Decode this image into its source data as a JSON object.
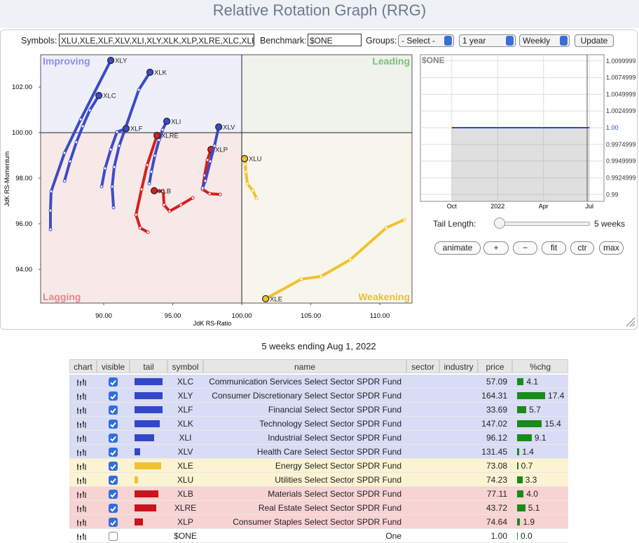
{
  "header": {
    "title": "Relative Rotation Graph (RRG)"
  },
  "controls": {
    "symbols_label": "Symbols:",
    "symbols": "XLU,XLE,XLF,XLV,XLI,XLY,XLK,XLP,XLRE,XLC,XLB",
    "benchmark_label": "Benchmark:",
    "benchmark": "$ONE",
    "groups_label": "Groups:",
    "groups": "- Select -",
    "period": "1 year",
    "frequency": "Weekly",
    "update": "Update",
    "tail_label": "Tail Length:",
    "tail_value": "5 weeks",
    "buttons": [
      "animate",
      "+",
      "−",
      "fit",
      "ctr",
      "max"
    ]
  },
  "chart_data": [
    {
      "type": "scatter",
      "x_label": "JdK RS-Ratio",
      "y_label": "JdK RS-Momentum",
      "center": [
        100,
        100
      ],
      "quadrants": [
        {
          "name": "Improving",
          "corner": "top-left",
          "color": "#8a93e0",
          "fill": "#eeeff9"
        },
        {
          "name": "Leading",
          "corner": "top-right",
          "color": "#7cbd7c",
          "fill": "#eef3ec"
        },
        {
          "name": "Lagging",
          "corner": "bottom-left",
          "color": "#e58888",
          "fill": "#f8e9e9"
        },
        {
          "name": "Weakening",
          "corner": "bottom-right",
          "color": "#e6bf3c",
          "fill": "#f8f6ec"
        }
      ],
      "xlim": [
        85.43,
        112.33
      ],
      "ylim": [
        92.52,
        103.42
      ],
      "xticks": [
        {
          "value": 90,
          "label": "90.00"
        },
        {
          "value": 95,
          "label": "95.00"
        },
        {
          "value": 100,
          "label": "100.00"
        },
        {
          "value": 105,
          "label": "105.00"
        },
        {
          "value": 110,
          "label": "110.00"
        }
      ],
      "yticks": [
        {
          "value": 94,
          "label": "94.00"
        },
        {
          "value": 96,
          "label": "96.00"
        },
        {
          "value": 98,
          "label": "98.00"
        },
        {
          "value": 100,
          "label": "100.00"
        },
        {
          "value": 102,
          "label": "102.00"
        }
      ],
      "series": [
        {
          "name": "XLY",
          "color": "#3a4cc8",
          "x": [
            86.14,
            86.14,
            86.19,
            87.16,
            88.33,
            90.51
          ],
          "values": [
            95.75,
            96.58,
            97.42,
            99.11,
            100.58,
            103.17
          ]
        },
        {
          "name": "XLC",
          "color": "#3a4cc8",
          "x": [
            87.16,
            87.56,
            88.02,
            88.48,
            88.99,
            89.65
          ],
          "values": [
            97.88,
            98.74,
            99.58,
            100.28,
            100.98,
            101.63
          ]
        },
        {
          "name": "XLK",
          "color": "#3a4cc8",
          "x": [
            90.71,
            90.61,
            90.76,
            91.12,
            92.54,
            93.35
          ],
          "values": [
            96.71,
            97.63,
            98.49,
            99.42,
            101.88,
            102.65
          ]
        },
        {
          "name": "XLF",
          "color": "#3a4cc8",
          "x": [
            89.85,
            90.1,
            90.51,
            90.96,
            91.62
          ],
          "values": [
            97.63,
            98.43,
            99.26,
            100.03,
            100.18
          ]
        },
        {
          "name": "XLI",
          "color": "#3a4cc8",
          "x": [
            93.3,
            93.45,
            93.7,
            94.01,
            94.26,
            94.57
          ],
          "values": [
            97.76,
            98.28,
            98.99,
            99.67,
            100.13,
            100.5
          ]
        },
        {
          "name": "XLRE",
          "color": "#d42020",
          "x": [
            93.2,
            92.64,
            92.34,
            92.74,
            93.15,
            93.86
          ],
          "values": [
            95.63,
            95.82,
            96.4,
            97.51,
            98.58,
            99.88
          ]
        },
        {
          "name": "XLB",
          "color": "#d42020",
          "x": [
            96.45,
            95.59,
            94.77,
            94.37,
            94.31,
            93.66
          ],
          "values": [
            97.14,
            96.83,
            96.55,
            96.83,
            97.42,
            97.45
          ]
        },
        {
          "name": "XLP",
          "color": "#d42020",
          "x": [
            98.43,
            97.67,
            97.16,
            97.31,
            97.51,
            97.77
          ],
          "values": [
            97.29,
            97.32,
            97.51,
            98.12,
            98.8,
            99.26
          ]
        },
        {
          "name": "XLV",
          "color": "#3a4cc8",
          "x": [
            97.16,
            97.36,
            97.72,
            98.02,
            98.33
          ],
          "values": [
            97.57,
            97.88,
            98.74,
            99.42,
            100.25
          ]
        },
        {
          "name": "XLU",
          "color": "#f0c230",
          "x": [
            101.07,
            100.81,
            100.41,
            100.3,
            100.25,
            100.2
          ],
          "values": [
            97.11,
            97.45,
            97.75,
            98.28,
            98.6,
            98.86
          ]
        },
        {
          "name": "XLE",
          "color": "#f0c230",
          "x": [
            111.78,
            110.46,
            107.87,
            105.74,
            104.32,
            101.73
          ],
          "values": [
            96.18,
            95.82,
            94.43,
            93.69,
            93.57,
            92.71
          ]
        }
      ]
    },
    {
      "type": "line",
      "title": "$ONE",
      "categories": [
        "Oct",
        "2022",
        "Apr",
        "Jul"
      ],
      "values": [
        1,
        1,
        1,
        1
      ],
      "color": "#3347c8",
      "grid": true,
      "ylim": [
        0.98898,
        1.01092
      ],
      "yticks": [
        {
          "value": 1.01,
          "label": "1.0099999"
        },
        {
          "value": 1.0075,
          "label": "1.0074999"
        },
        {
          "value": 1.005,
          "label": "1.0049999"
        },
        {
          "value": 1.0025,
          "label": "1.0024999"
        },
        {
          "value": 1,
          "label": "1.00"
        },
        {
          "value": 0.9975,
          "label": "0.9974999"
        },
        {
          "value": 0.995,
          "label": "0.9949999"
        },
        {
          "value": 0.9925,
          "label": "0.9924999"
        },
        {
          "value": 0.99,
          "label": "0.99"
        }
      ]
    }
  ],
  "table": {
    "caption": "5 weeks ending Aug 1, 2022",
    "columns": [
      "chart",
      "visible",
      "tail",
      "symbol",
      "name",
      "sector",
      "industry",
      "price",
      "%chg"
    ],
    "rows": [
      {
        "symbol": "XLC",
        "name": "Communication Services Select Sector SPDR Fund",
        "price": "57.09",
        "chg": "4.1",
        "tail": 40,
        "color": "#3347c8",
        "bg": "#d9dcf5",
        "visible": true
      },
      {
        "symbol": "XLY",
        "name": "Consumer Discretionary Select Sector SPDR Fund",
        "price": "164.31",
        "chg": "17.4",
        "tail": 40,
        "color": "#3347c8",
        "bg": "#d9dcf5",
        "visible": true
      },
      {
        "symbol": "XLF",
        "name": "Financial Select Sector SPDR Fund",
        "price": "33.69",
        "chg": "5.7",
        "tail": 40,
        "color": "#3347c8",
        "bg": "#d9dcf5",
        "visible": true
      },
      {
        "symbol": "XLK",
        "name": "Technology Select Sector SPDR Fund",
        "price": "147.02",
        "chg": "15.4",
        "tail": 36,
        "color": "#3347c8",
        "bg": "#d9dcf5",
        "visible": true
      },
      {
        "symbol": "XLI",
        "name": "Industrial Select Sector SPDR Fund",
        "price": "96.12",
        "chg": "9.1",
        "tail": 28,
        "color": "#3347c8",
        "bg": "#d9dcf5",
        "visible": true
      },
      {
        "symbol": "XLV",
        "name": "Health Care Select Sector SPDR Fund",
        "price": "131.45",
        "chg": "1.4",
        "tail": 8,
        "color": "#3347c8",
        "bg": "#d9dcf5",
        "visible": true
      },
      {
        "symbol": "XLE",
        "name": "Energy Select Sector SPDR Fund",
        "price": "73.08",
        "chg": "0.7",
        "tail": 38,
        "color": "#f0c230",
        "bg": "#fbf3d2",
        "visible": true
      },
      {
        "symbol": "XLU",
        "name": "Utilities Select Sector SPDR Fund",
        "price": "74.23",
        "chg": "3.3",
        "tail": 5,
        "color": "#f0c230",
        "bg": "#fbf3d2",
        "visible": true
      },
      {
        "symbol": "XLB",
        "name": "Materials Select Sector SPDR Fund",
        "price": "77.11",
        "chg": "4.0",
        "tail": 34,
        "color": "#c8141e",
        "bg": "#f8d3d3",
        "visible": true
      },
      {
        "symbol": "XLRE",
        "name": "Real Estate Select Sector SPDR Fund",
        "price": "43.72",
        "chg": "5.1",
        "tail": 31,
        "color": "#c8141e",
        "bg": "#f8d3d3",
        "visible": true
      },
      {
        "symbol": "XLP",
        "name": "Consumer Staples Select Sector SPDR Fund",
        "price": "74.64",
        "chg": "1.9",
        "tail": 12,
        "color": "#c8141e",
        "bg": "#f8d3d3",
        "visible": true
      },
      {
        "symbol": "$ONE",
        "name": "One",
        "price": "1.00",
        "chg": "0.0",
        "tail": 0,
        "color": "#ffffff",
        "bg": "#ffffff",
        "visible": false
      }
    ]
  }
}
